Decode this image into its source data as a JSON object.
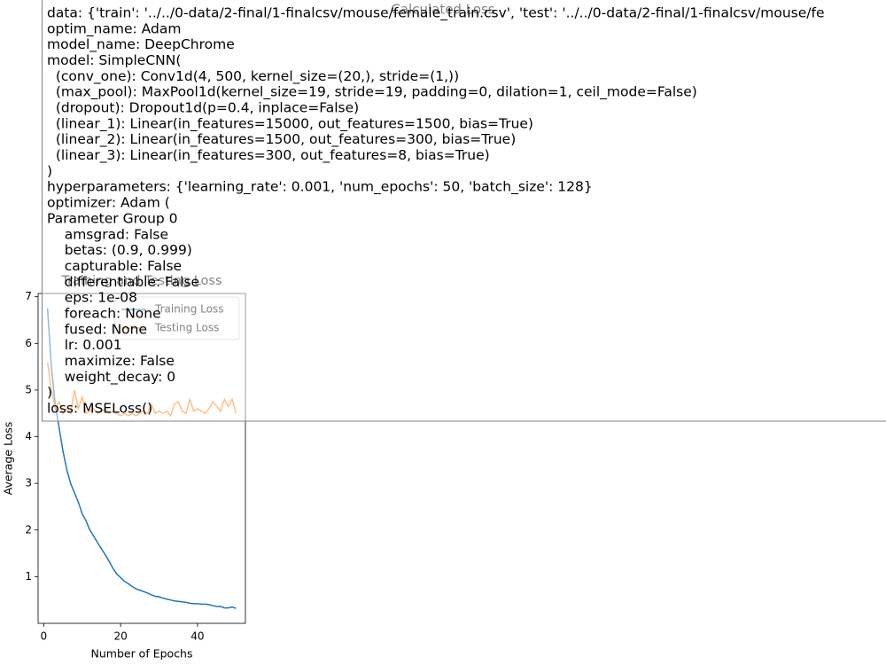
{
  "chart_data": {
    "type": "line",
    "title": "Training and Testing Loss",
    "xlabel": "Number of Epochs",
    "ylabel": "Average Loss",
    "suptitle": "Calculated Loss",
    "x": [
      1,
      2,
      3,
      4,
      5,
      6,
      7,
      8,
      9,
      10,
      11,
      12,
      13,
      14,
      15,
      16,
      17,
      18,
      19,
      20,
      21,
      22,
      23,
      24,
      25,
      26,
      27,
      28,
      29,
      30,
      31,
      32,
      33,
      34,
      35,
      36,
      37,
      38,
      39,
      40,
      41,
      42,
      43,
      44,
      45,
      46,
      47,
      48,
      49,
      50
    ],
    "series": [
      {
        "name": "Training Loss",
        "color": "#1f77b4",
        "values": [
          6.75,
          5.5,
          4.7,
          4.2,
          3.7,
          3.3,
          3.0,
          2.8,
          2.6,
          2.35,
          2.2,
          2.0,
          1.87,
          1.73,
          1.6,
          1.47,
          1.33,
          1.18,
          1.06,
          0.98,
          0.9,
          0.85,
          0.79,
          0.74,
          0.71,
          0.68,
          0.65,
          0.61,
          0.58,
          0.57,
          0.54,
          0.52,
          0.5,
          0.48,
          0.47,
          0.46,
          0.45,
          0.43,
          0.42,
          0.42,
          0.41,
          0.41,
          0.4,
          0.38,
          0.36,
          0.36,
          0.33,
          0.33,
          0.35,
          0.32
        ]
      },
      {
        "name": "Testing Loss",
        "color": "#ff7f0e",
        "values": [
          5.6,
          5.0,
          4.6,
          4.75,
          4.5,
          4.6,
          4.5,
          5.0,
          4.6,
          4.85,
          4.5,
          4.55,
          4.6,
          4.5,
          4.55,
          4.6,
          4.5,
          4.55,
          4.5,
          4.45,
          4.5,
          4.45,
          4.5,
          4.45,
          4.5,
          4.55,
          4.5,
          4.7,
          4.5,
          4.55,
          4.5,
          4.55,
          4.45,
          4.7,
          4.75,
          4.55,
          4.5,
          4.8,
          4.55,
          4.6,
          4.55,
          4.5,
          4.6,
          4.75,
          4.65,
          4.55,
          4.8,
          4.65,
          4.8,
          4.5
        ]
      }
    ],
    "xlim": [
      -1.45,
      52.45
    ],
    "ylim": [
      0.0,
      7.07
    ],
    "xticks": [
      0,
      20,
      40
    ],
    "yticks": [
      1,
      2,
      3,
      4,
      5,
      6,
      7
    ],
    "legend": "upper right",
    "annotation_lines": [
      "data: {'train': '../../0-data/2-final/1-finalcsv/mouse/female_train.csv', 'test': '../../0-data/2-final/1-finalcsv/mouse/fe",
      "optim_name: Adam",
      "model_name: DeepChrome",
      "model: SimpleCNN(",
      "  (conv_one): Conv1d(4, 500, kernel_size=(20,), stride=(1,))",
      "  (max_pool): MaxPool1d(kernel_size=19, stride=19, padding=0, dilation=1, ceil_mode=False)",
      "  (dropout): Dropout1d(p=0.4, inplace=False)",
      "  (linear_1): Linear(in_features=15000, out_features=1500, bias=True)",
      "  (linear_2): Linear(in_features=1500, out_features=300, bias=True)",
      "  (linear_3): Linear(in_features=300, out_features=8, bias=True)",
      ")",
      "hyperparameters: {'learning_rate': 0.001, 'num_epochs': 50, 'batch_size': 128}",
      "optimizer: Adam (",
      "Parameter Group 0",
      "    amsgrad: False",
      "    betas: (0.9, 0.999)",
      "    capturable: False",
      "    differentiable: False",
      "    eps: 1e-08",
      "    foreach: None",
      "    fused: None",
      "    lr: 0.001",
      "    maximize: False",
      "    weight_decay: 0",
      ")",
      "loss: MSELoss()"
    ]
  }
}
